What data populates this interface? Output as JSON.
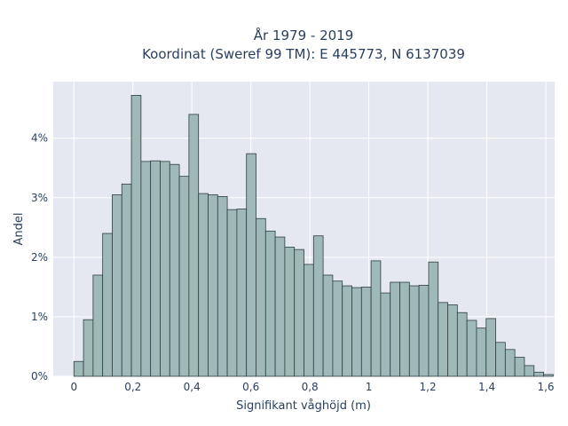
{
  "chart_data": {
    "type": "bar",
    "title_line1": "År 1979 - 2019",
    "title_line2": "Koordinat (Sweref 99 TM): E 445773, N 6137039",
    "xlabel": "Signifikant våghöjd (m)",
    "ylabel": "Andel",
    "bin_width": 0.0325,
    "x_start": 0.0,
    "xlim": [
      -0.07,
      1.63
    ],
    "ylim": [
      0,
      4.95
    ],
    "x_ticks": [
      0,
      0.2,
      0.4,
      0.6,
      0.8,
      1.0,
      1.2,
      1.4,
      1.6
    ],
    "x_tick_labels": [
      "0",
      "0,2",
      "0,4",
      "0,6",
      "0,8",
      "1",
      "1,2",
      "1,4",
      "1,6"
    ],
    "y_ticks": [
      0,
      1,
      2,
      3,
      4
    ],
    "y_tick_labels": [
      "0%",
      "1%",
      "2%",
      "3%",
      "4%"
    ],
    "grid": true,
    "bar_color": "#9fb8b8",
    "bar_edge_color": "#2f3f3f",
    "plot_bg": "#e5e8f0",
    "values": [
      0.25,
      0.95,
      1.7,
      2.4,
      3.05,
      3.23,
      4.72,
      3.61,
      3.62,
      3.61,
      3.56,
      3.36,
      4.4,
      3.07,
      3.05,
      3.02,
      2.8,
      2.81,
      3.74,
      2.65,
      2.44,
      2.34,
      2.17,
      2.13,
      1.88,
      2.36,
      1.7,
      1.6,
      1.52,
      1.49,
      1.5,
      1.94,
      1.4,
      1.58,
      1.58,
      1.52,
      1.53,
      1.92,
      1.24,
      1.2,
      1.07,
      0.94,
      0.81,
      0.97,
      0.57,
      0.45,
      0.32,
      0.18,
      0.07,
      0.03
    ]
  }
}
